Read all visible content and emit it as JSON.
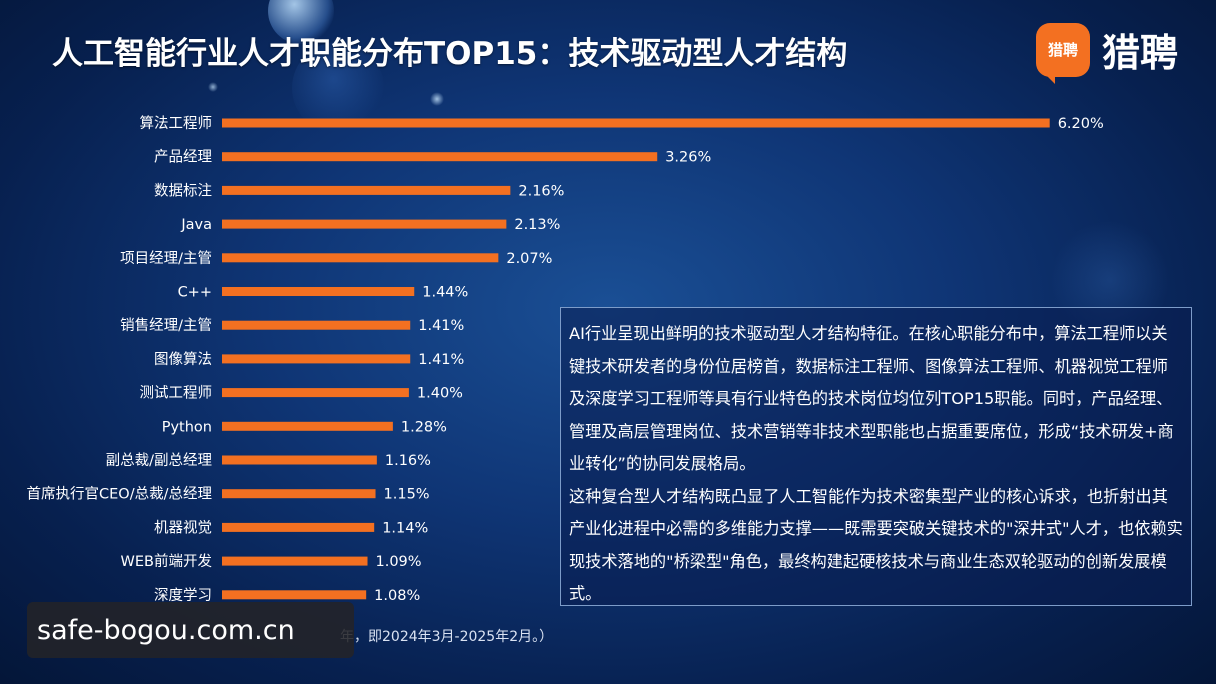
{
  "title": "人工智能行业人才职能分布TOP15：技术驱动型人才结构",
  "logo": {
    "badge_text": "猎聘",
    "name": "猎聘"
  },
  "chart_data": {
    "type": "bar",
    "orientation": "horizontal",
    "categories": [
      "算法工程师",
      "产品经理",
      "数据标注",
      "Java",
      "项目经理/主管",
      "C++",
      "销售经理/主管",
      "图像算法",
      "测试工程师",
      "Python",
      "副总裁/副总经理",
      "首席执行官CEO/总裁/总经理",
      "机器视觉",
      "WEB前端开发",
      "深度学习"
    ],
    "values": [
      6.2,
      3.26,
      2.16,
      2.13,
      2.07,
      1.44,
      1.41,
      1.41,
      1.4,
      1.28,
      1.16,
      1.15,
      1.14,
      1.09,
      1.08
    ],
    "value_labels": [
      "6.20%",
      "3.26%",
      "2.16%",
      "2.13%",
      "2.07%",
      "1.44%",
      "1.41%",
      "1.41%",
      "1.40%",
      "1.28%",
      "1.16%",
      "1.15%",
      "1.14%",
      "1.09%",
      "1.08%"
    ],
    "unit": "%",
    "bar_color": "#f37021",
    "grid": false,
    "legend": "none"
  },
  "infobox": {
    "paragraphs": [
      "AI行业呈现出鲜明的技术驱动型人才结构特征。在核心职能分布中，算法工程师以关键技术研发者的身份位居榜首，数据标注工程师、图像算法工程师、机器视觉工程师及深度学习工程师等具有行业特色的技术岗位均位列TOP15职能。同时，产品经理、管理及高层管理岗位、技术营销等非技术型职能也占据重要席位，形成“技术研发+商业转化”的协同发展格局。",
      "这种复合型人才结构既凸显了人工智能作为技术密集型产业的核心诉求，也折射出其产业化进程中必需的多维能力支撑——既需要突破关键技术的\"深井式\"人才，也依赖实现技术落地的\"桥梁型\"角色，最终构建起硬核技术与商业生态双轮驱动的创新发展模式。"
    ]
  },
  "source_fragment": "年，即2024年3月-2025年2月。）",
  "watermark": "safe-bogou.com.cn"
}
